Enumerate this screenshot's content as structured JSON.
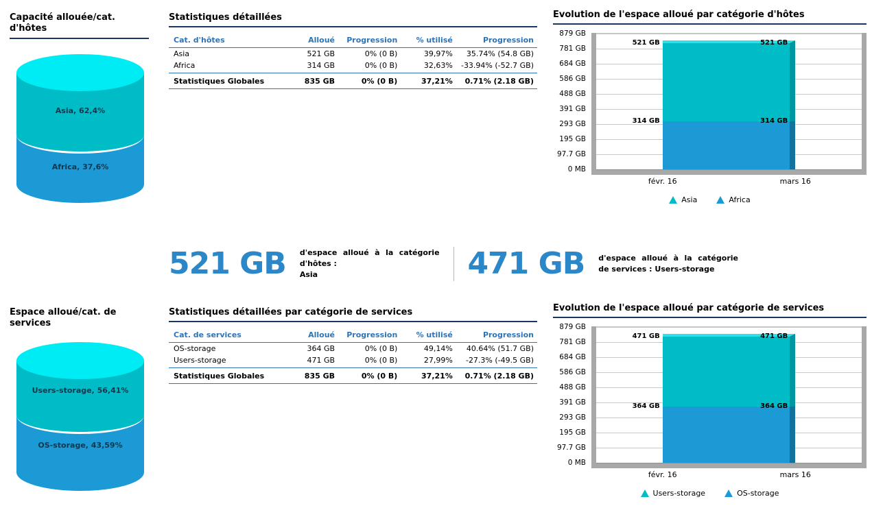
{
  "colors": {
    "title_underline": "#17375e",
    "table_accent": "#2e74b5",
    "big_number": "#2b87c8",
    "teal": "#00bcc6",
    "blue": "#1b9ad6",
    "cyan_top": "#00ecf4"
  },
  "stats": {
    "left": {
      "value": "521 GB",
      "caption": "d'espace alloué à la catégorie d'hôtes :",
      "highlight": "Asia"
    },
    "right": {
      "value": "471 GB",
      "caption": "d'espace alloué à la catégorie de services :",
      "highlight": "Users-storage"
    }
  },
  "tables": {
    "hosts": {
      "title": "Statistiques détaillées",
      "headers": [
        "Cat. d'hôtes",
        "Alloué",
        "Progression",
        "% utilisé",
        "Progression"
      ],
      "rows": [
        [
          "Asia",
          "521 GB",
          "0% (0 B)",
          "39,97%",
          "35.74% (54.8 GB)"
        ],
        [
          "Africa",
          "314 GB",
          "0% (0 B)",
          "32,63%",
          "-33.94% (-52.7 GB)"
        ]
      ],
      "total": [
        "Statistiques Globales",
        "835 GB",
        "0% (0 B)",
        "37,21%",
        "0.71% (2.18 GB)"
      ]
    },
    "services": {
      "title": "Statistiques détaillées par catégorie de services",
      "headers": [
        "Cat. de services",
        "Alloué",
        "Progression",
        "% utilisé",
        "Progression"
      ],
      "rows": [
        [
          "OS-storage",
          "364 GB",
          "0% (0 B)",
          "49,14%",
          "40.64% (51.7 GB)"
        ],
        [
          "Users-storage",
          "471 GB",
          "0% (0 B)",
          "27,99%",
          "-27.3% (-49.5 GB)"
        ]
      ],
      "total": [
        "Statistiques Globales",
        "835 GB",
        "0% (0 B)",
        "37,21%",
        "0.71% (2.18 GB)"
      ]
    }
  },
  "chart_data": [
    {
      "id": "hosts-pie",
      "type": "pie",
      "title": "Capacité allouée/cat. d'hôtes",
      "labels": [
        "Asia",
        "Africa"
      ],
      "values": [
        62.4,
        37.6
      ],
      "display_labels": [
        "Asia, 62,4%",
        "Africa, 37,6%"
      ],
      "colors": [
        "#00bcc6",
        "#1b9ad6"
      ],
      "top_color": "#00ecf4"
    },
    {
      "id": "hosts-evo",
      "type": "bar",
      "stacked": true,
      "title": "Evolution de l'espace alloué par catégorie d'hôtes",
      "categories": [
        "févr. 16",
        "mars 16"
      ],
      "series": [
        {
          "name": "Asia",
          "values": [
            521,
            521
          ],
          "label": "521 GB",
          "color": "#00bcc6",
          "side_color": "#00969e",
          "top_color": "#2fe0e8"
        },
        {
          "name": "Africa",
          "values": [
            314,
            314
          ],
          "label": "314 GB",
          "color": "#1b9ad6",
          "side_color": "#14719c"
        }
      ],
      "ymax_gb": 879,
      "yticks": [
        "879 GB",
        "781 GB",
        "684 GB",
        "586 GB",
        "488 GB",
        "391 GB",
        "293 GB",
        "195 GB",
        "97.7 GB",
        "0 MB"
      ],
      "legend": [
        "Asia",
        "Africa"
      ]
    },
    {
      "id": "services-pie",
      "type": "pie",
      "title": "Espace alloué/cat. de services",
      "labels": [
        "Users-storage",
        "OS-storage"
      ],
      "values": [
        56.41,
        43.59
      ],
      "display_labels": [
        "Users-storage, 56,41%",
        "OS-storage, 43,59%"
      ],
      "colors": [
        "#00bcc6",
        "#1b9ad6"
      ],
      "top_color": "#00ecf4"
    },
    {
      "id": "services-evo",
      "type": "bar",
      "stacked": true,
      "title": "Evolution de l'espace alloué par catégorie de services",
      "categories": [
        "févr. 16",
        "mars 16"
      ],
      "series": [
        {
          "name": "Users-storage",
          "values": [
            471,
            471
          ],
          "label": "471 GB",
          "color": "#00bcc6",
          "side_color": "#00969e",
          "top_color": "#2fe0e8"
        },
        {
          "name": "OS-storage",
          "values": [
            364,
            364
          ],
          "label": "364 GB",
          "color": "#1b9ad6",
          "side_color": "#14719c"
        }
      ],
      "ymax_gb": 879,
      "yticks": [
        "879 GB",
        "781 GB",
        "684 GB",
        "586 GB",
        "488 GB",
        "391 GB",
        "293 GB",
        "195 GB",
        "97.7 GB",
        "0 MB"
      ],
      "legend": [
        "Users-storage",
        "OS-storage"
      ]
    }
  ]
}
